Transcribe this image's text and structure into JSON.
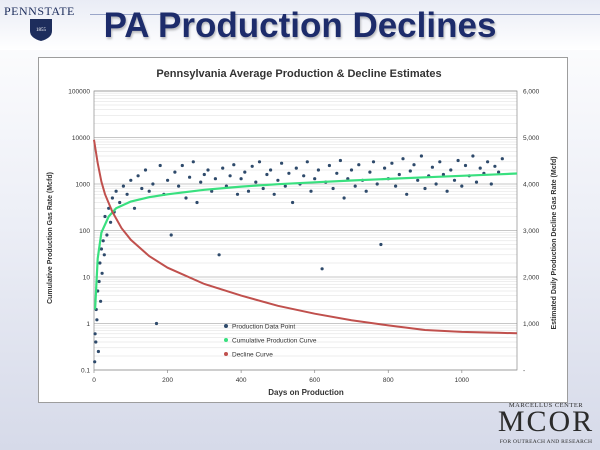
{
  "slide": {
    "title": "PA Production Declines"
  },
  "logos": {
    "psu_wordmark": "PENNSTATE",
    "psu_year": "1855",
    "mcor_top": "MARCELLUS CENTER",
    "mcor_main": "MCOR",
    "mcor_bottom": "FOR OUTREACH AND RESEARCH"
  },
  "colors": {
    "title": "#1d2c6b",
    "points": "#2e4a6b",
    "cumulative": "#39e07f",
    "decline": "#c0504d"
  },
  "chart_data": {
    "type": "scatter",
    "title": "Pennsylvania Average Production & Decline  Estimates",
    "xlabel": "Days on Production",
    "ylabel_left": "Cumulative Production Gas Rate (Mcfd)",
    "ylabel_right": "Estimated Daily Production Decline Gas Rate (Mcfd)",
    "xlim": [
      0,
      1150
    ],
    "x_ticks": [
      "0",
      "200",
      "400",
      "600",
      "800",
      "1000"
    ],
    "y_left_scale": "log",
    "y_left_lim": [
      0.1,
      100000
    ],
    "y_left_ticks": [
      "0.1",
      "1",
      "10",
      "100",
      "1000",
      "10000",
      "100000"
    ],
    "y_right_lim": [
      0,
      6000
    ],
    "y_right_ticks": [
      "-",
      "1,000",
      "2,000",
      "3,000",
      "4,000",
      "5,000",
      "6,000"
    ],
    "grid": true,
    "legend_position": "bottom-left",
    "series": [
      {
        "name": "Production Data Point",
        "kind": "scatter",
        "axis": "left",
        "points": [
          [
            2,
            0.15
          ],
          [
            3,
            0.6
          ],
          [
            5,
            0.4
          ],
          [
            6,
            2
          ],
          [
            8,
            1.2
          ],
          [
            10,
            5
          ],
          [
            12,
            0.25
          ],
          [
            14,
            8
          ],
          [
            16,
            20
          ],
          [
            18,
            3
          ],
          [
            20,
            40
          ],
          [
            22,
            12
          ],
          [
            25,
            60
          ],
          [
            28,
            30
          ],
          [
            30,
            200
          ],
          [
            35,
            80
          ],
          [
            40,
            300
          ],
          [
            45,
            150
          ],
          [
            50,
            500
          ],
          [
            55,
            250
          ],
          [
            60,
            700
          ],
          [
            70,
            400
          ],
          [
            80,
            900
          ],
          [
            90,
            600
          ],
          [
            100,
            1200
          ],
          [
            110,
            300
          ],
          [
            120,
            1500
          ],
          [
            130,
            800
          ],
          [
            140,
            2000
          ],
          [
            150,
            700
          ],
          [
            160,
            1000
          ],
          [
            170,
            1
          ],
          [
            180,
            2500
          ],
          [
            190,
            600
          ],
          [
            200,
            1200
          ],
          [
            210,
            80
          ],
          [
            220,
            1800
          ],
          [
            230,
            900
          ],
          [
            240,
            2500
          ],
          [
            250,
            500
          ],
          [
            260,
            1400
          ],
          [
            270,
            3000
          ],
          [
            280,
            400
          ],
          [
            290,
            1100
          ],
          [
            300,
            1600
          ],
          [
            310,
            2000
          ],
          [
            320,
            700
          ],
          [
            330,
            1300
          ],
          [
            340,
            30
          ],
          [
            350,
            2200
          ],
          [
            360,
            900
          ],
          [
            370,
            1500
          ],
          [
            380,
            2600
          ],
          [
            390,
            600
          ],
          [
            400,
            1300
          ],
          [
            410,
            1800
          ],
          [
            420,
            700
          ],
          [
            430,
            2400
          ],
          [
            440,
            1100
          ],
          [
            450,
            3000
          ],
          [
            460,
            800
          ],
          [
            470,
            1600
          ],
          [
            480,
            2000
          ],
          [
            490,
            600
          ],
          [
            500,
            1200
          ],
          [
            510,
            2800
          ],
          [
            520,
            900
          ],
          [
            530,
            1700
          ],
          [
            540,
            400
          ],
          [
            550,
            2200
          ],
          [
            560,
            1000
          ],
          [
            570,
            1500
          ],
          [
            580,
            3000
          ],
          [
            590,
            700
          ],
          [
            600,
            1300
          ],
          [
            610,
            2000
          ],
          [
            620,
            15
          ],
          [
            630,
            1100
          ],
          [
            640,
            2500
          ],
          [
            650,
            800
          ],
          [
            660,
            1700
          ],
          [
            670,
            3200
          ],
          [
            680,
            500
          ],
          [
            690,
            1300
          ],
          [
            700,
            2000
          ],
          [
            710,
            900
          ],
          [
            720,
            2600
          ],
          [
            730,
            1200
          ],
          [
            740,
            700
          ],
          [
            750,
            1800
          ],
          [
            760,
            3000
          ],
          [
            770,
            1000
          ],
          [
            780,
            50
          ],
          [
            790,
            2200
          ],
          [
            800,
            1300
          ],
          [
            810,
            2800
          ],
          [
            820,
            900
          ],
          [
            830,
            1600
          ],
          [
            840,
            3500
          ],
          [
            850,
            600
          ],
          [
            860,
            1900
          ],
          [
            870,
            2600
          ],
          [
            880,
            1200
          ],
          [
            890,
            4000
          ],
          [
            900,
            800
          ],
          [
            910,
            1500
          ],
          [
            920,
            2300
          ],
          [
            930,
            1000
          ],
          [
            940,
            3000
          ],
          [
            950,
            1600
          ],
          [
            960,
            700
          ],
          [
            970,
            2000
          ],
          [
            980,
            1200
          ],
          [
            990,
            3200
          ],
          [
            1000,
            900
          ],
          [
            1010,
            2500
          ],
          [
            1020,
            1500
          ],
          [
            1030,
            4000
          ],
          [
            1040,
            1100
          ],
          [
            1050,
            2200
          ],
          [
            1060,
            1700
          ],
          [
            1070,
            3000
          ],
          [
            1080,
            1000
          ],
          [
            1090,
            2400
          ],
          [
            1100,
            1800
          ],
          [
            1110,
            3500
          ]
        ]
      },
      {
        "name": "Cumulative Production Curve",
        "kind": "line",
        "axis": "left",
        "points": [
          [
            3,
            2
          ],
          [
            10,
            25
          ],
          [
            20,
            90
          ],
          [
            40,
            200
          ],
          [
            60,
            300
          ],
          [
            100,
            420
          ],
          [
            150,
            520
          ],
          [
            200,
            600
          ],
          [
            300,
            750
          ],
          [
            400,
            880
          ],
          [
            500,
            990
          ],
          [
            600,
            1090
          ],
          [
            700,
            1190
          ],
          [
            800,
            1290
          ],
          [
            900,
            1390
          ],
          [
            1000,
            1500
          ],
          [
            1100,
            1620
          ],
          [
            1150,
            1680
          ]
        ]
      },
      {
        "name": "Decline Curve",
        "kind": "line",
        "axis": "right",
        "points": [
          [
            0,
            4950
          ],
          [
            10,
            4450
          ],
          [
            20,
            4050
          ],
          [
            30,
            3780
          ],
          [
            50,
            3400
          ],
          [
            75,
            3050
          ],
          [
            100,
            2800
          ],
          [
            150,
            2450
          ],
          [
            200,
            2200
          ],
          [
            300,
            1850
          ],
          [
            400,
            1600
          ],
          [
            500,
            1380
          ],
          [
            600,
            1210
          ],
          [
            700,
            1070
          ],
          [
            800,
            960
          ],
          [
            900,
            860
          ],
          [
            1000,
            820
          ],
          [
            1100,
            800
          ],
          [
            1150,
            790
          ]
        ]
      }
    ]
  }
}
